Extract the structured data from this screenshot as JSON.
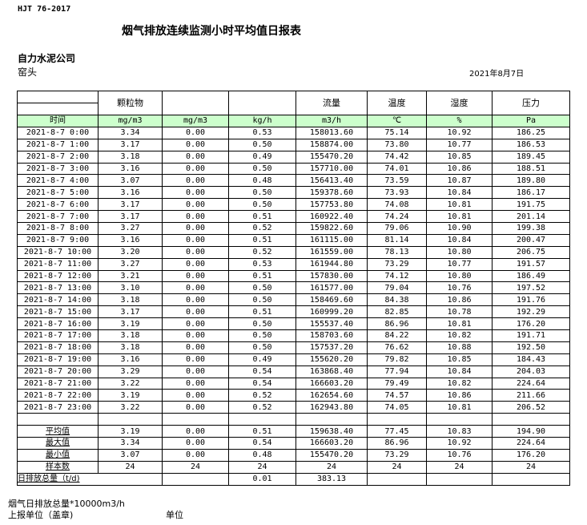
{
  "standard": "HJT  76-2017",
  "title": "烟气排放连续监测小时平均值日报表",
  "company": "自力水泥公司",
  "site": "窑头",
  "date": "2021年8月7日",
  "headers": [
    "",
    "颗粒物",
    "",
    "",
    "流量",
    "温度",
    "湿度",
    "压力"
  ],
  "units": [
    "时间",
    "mg/m3",
    "mg/m3",
    "kg/h",
    "m3/h",
    "℃",
    "%",
    "Pa"
  ],
  "rows": [
    [
      "2021-8-7 0:00",
      "3.34",
      "0.00",
      "0.53",
      "158013.60",
      "75.14",
      "10.92",
      "186.25"
    ],
    [
      "2021-8-7 1:00",
      "3.17",
      "0.00",
      "0.50",
      "158874.00",
      "73.80",
      "10.77",
      "186.53"
    ],
    [
      "2021-8-7 2:00",
      "3.18",
      "0.00",
      "0.49",
      "155470.20",
      "74.42",
      "10.85",
      "189.45"
    ],
    [
      "2021-8-7 3:00",
      "3.16",
      "0.00",
      "0.50",
      "157710.00",
      "74.01",
      "10.86",
      "188.51"
    ],
    [
      "2021-8-7 4:00",
      "3.07",
      "0.00",
      "0.48",
      "156413.40",
      "73.59",
      "10.87",
      "189.80"
    ],
    [
      "2021-8-7 5:00",
      "3.16",
      "0.00",
      "0.50",
      "159378.60",
      "73.93",
      "10.84",
      "186.17"
    ],
    [
      "2021-8-7 6:00",
      "3.17",
      "0.00",
      "0.50",
      "157753.80",
      "74.08",
      "10.81",
      "191.75"
    ],
    [
      "2021-8-7 7:00",
      "3.17",
      "0.00",
      "0.51",
      "160922.40",
      "74.24",
      "10.81",
      "201.14"
    ],
    [
      "2021-8-7 8:00",
      "3.27",
      "0.00",
      "0.52",
      "159822.60",
      "79.06",
      "10.90",
      "199.38"
    ],
    [
      "2021-8-7 9:00",
      "3.16",
      "0.00",
      "0.51",
      "161115.00",
      "81.14",
      "10.84",
      "200.47"
    ],
    [
      "2021-8-7 10:00",
      "3.20",
      "0.00",
      "0.52",
      "161559.00",
      "78.13",
      "10.80",
      "206.75"
    ],
    [
      "2021-8-7 11:00",
      "3.27",
      "0.00",
      "0.53",
      "161944.80",
      "73.29",
      "10.77",
      "191.57"
    ],
    [
      "2021-8-7 12:00",
      "3.21",
      "0.00",
      "0.51",
      "157830.00",
      "74.12",
      "10.80",
      "186.49"
    ],
    [
      "2021-8-7 13:00",
      "3.10",
      "0.00",
      "0.50",
      "161577.00",
      "79.04",
      "10.76",
      "197.52"
    ],
    [
      "2021-8-7 14:00",
      "3.18",
      "0.00",
      "0.50",
      "158469.60",
      "84.38",
      "10.86",
      "191.76"
    ],
    [
      "2021-8-7 15:00",
      "3.17",
      "0.00",
      "0.51",
      "160999.20",
      "82.85",
      "10.78",
      "192.29"
    ],
    [
      "2021-8-7 16:00",
      "3.19",
      "0.00",
      "0.50",
      "155537.40",
      "86.96",
      "10.81",
      "176.20"
    ],
    [
      "2021-8-7 17:00",
      "3.18",
      "0.00",
      "0.50",
      "158703.60",
      "84.22",
      "10.82",
      "191.71"
    ],
    [
      "2021-8-7 18:00",
      "3.18",
      "0.00",
      "0.50",
      "157537.20",
      "76.62",
      "10.88",
      "192.50"
    ],
    [
      "2021-8-7 19:00",
      "3.16",
      "0.00",
      "0.49",
      "155620.20",
      "79.82",
      "10.85",
      "184.43"
    ],
    [
      "2021-8-7 20:00",
      "3.29",
      "0.00",
      "0.54",
      "163868.40",
      "77.94",
      "10.84",
      "204.03"
    ],
    [
      "2021-8-7 21:00",
      "3.22",
      "0.00",
      "0.54",
      "166603.20",
      "79.49",
      "10.82",
      "224.64"
    ],
    [
      "2021-8-7 22:00",
      "3.19",
      "0.00",
      "0.52",
      "162654.60",
      "74.57",
      "10.86",
      "211.66"
    ],
    [
      "2021-8-7 23:00",
      "3.22",
      "0.00",
      "0.52",
      "162943.80",
      "74.05",
      "10.81",
      "206.52"
    ]
  ],
  "summary": [
    [
      "平均值",
      "3.19",
      "0.00",
      "0.51",
      "159638.40",
      "77.45",
      "10.83",
      "194.90"
    ],
    [
      "最大值",
      "3.34",
      "0.00",
      "0.54",
      "166603.20",
      "86.96",
      "10.92",
      "224.64"
    ],
    [
      "最小值",
      "3.07",
      "0.00",
      "0.48",
      "155470.20",
      "73.29",
      "10.76",
      "176.20"
    ],
    [
      "样本数",
      "24",
      "24",
      "24",
      "24",
      "24",
      "24",
      "24"
    ]
  ],
  "total": {
    "label": "日排放总量（t/d)",
    "kg": "0.01",
    "flow": "383.13"
  },
  "footer": {
    "note": "烟气日排放总量*10000m3/h",
    "unit_label": "上报单位（盖章)",
    "unit": "单位"
  },
  "colors": {
    "unit_row_bg": "#ccffcc"
  }
}
